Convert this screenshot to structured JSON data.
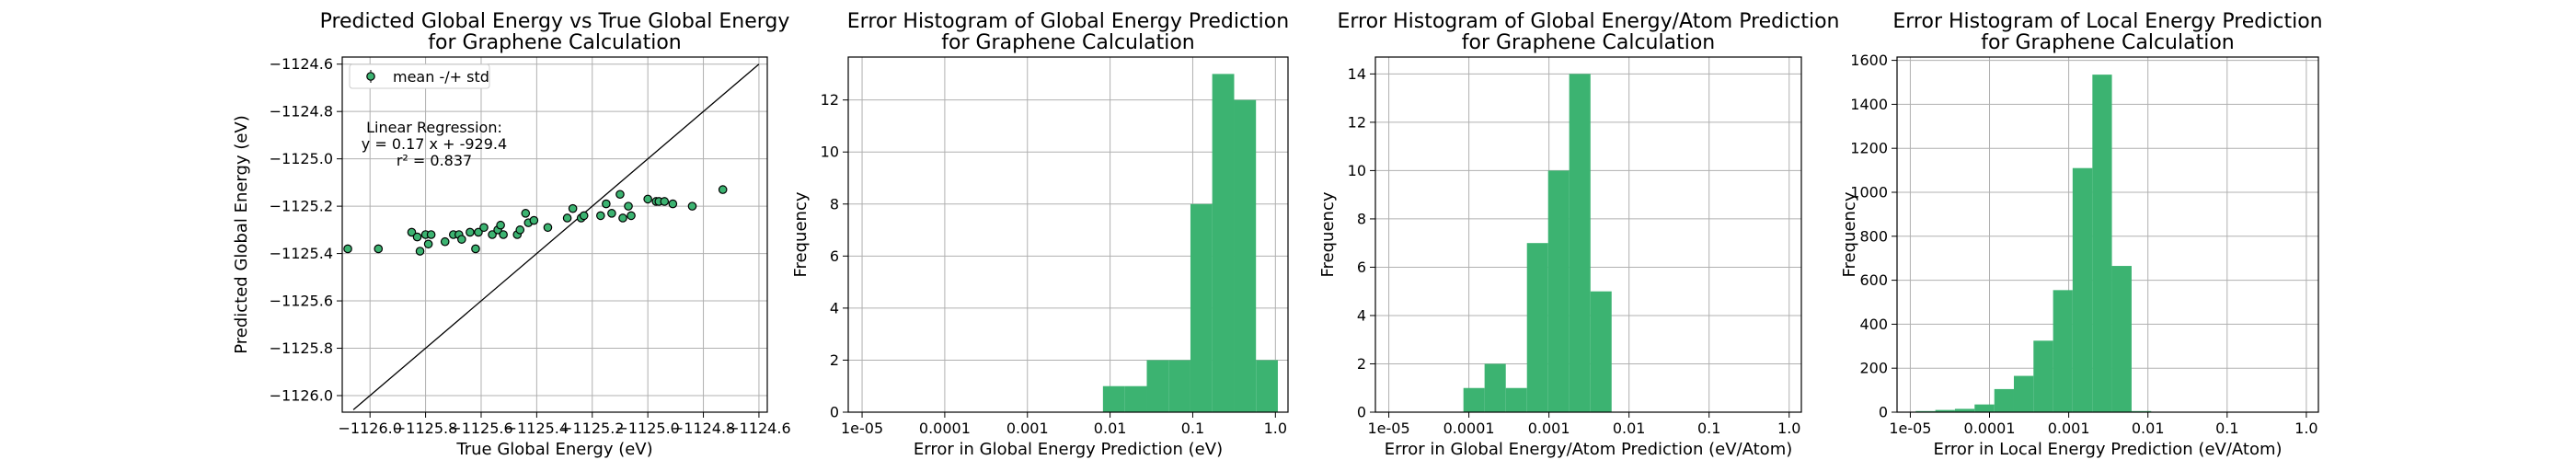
{
  "colors": {
    "bar": "#3cb371",
    "point": "#3cb371",
    "grid": "#b0b0b0",
    "line": "#000000"
  },
  "chart_data": [
    {
      "type": "scatter",
      "title": "Predicted Global Energy vs True Global Energy",
      "subtitle": "for Graphene Calculation",
      "xlabel": "True Global Energy (eV)",
      "ylabel": "Predicted Global Energy (eV)",
      "xlim": [
        -1126.1,
        -1124.57
      ],
      "ylim": [
        -1126.07,
        -1124.57
      ],
      "xticks": [
        -1126.0,
        -1125.8,
        -1125.6,
        -1125.4,
        -1125.2,
        -1125.0,
        -1124.8,
        -1124.6
      ],
      "xtick_labels": [
        "−1126.0",
        "−1125.8",
        "−1125.6",
        "−1125.4",
        "−1125.2",
        "−1125.0",
        "−1124.8",
        "−1124.6"
      ],
      "yticks": [
        -1126.0,
        -1125.8,
        -1125.6,
        -1125.4,
        -1125.2,
        -1125.0,
        -1124.8,
        -1124.6
      ],
      "ytick_labels": [
        "−1126.0",
        "−1125.8",
        "−1125.6",
        "−1125.4",
        "−1125.2",
        "−1125.0",
        "−1124.8",
        "−1124.6"
      ],
      "grid": true,
      "legend": {
        "label": "mean -/+ std",
        "position": "top-left"
      },
      "annotation": [
        "Linear Regression:",
        "y = 0.17 x + -929.4",
        "r² = 0.837"
      ],
      "identity_line": [
        [
          -1126.06,
          -1126.06
        ],
        [
          -1124.6,
          -1124.6
        ]
      ],
      "points": [
        [
          -1126.08,
          -1125.38
        ],
        [
          -1125.97,
          -1125.38
        ],
        [
          -1125.85,
          -1125.31
        ],
        [
          -1125.83,
          -1125.33
        ],
        [
          -1125.82,
          -1125.39
        ],
        [
          -1125.8,
          -1125.32
        ],
        [
          -1125.79,
          -1125.36
        ],
        [
          -1125.78,
          -1125.32
        ],
        [
          -1125.73,
          -1125.35
        ],
        [
          -1125.7,
          -1125.32
        ],
        [
          -1125.68,
          -1125.32
        ],
        [
          -1125.67,
          -1125.34
        ],
        [
          -1125.64,
          -1125.31
        ],
        [
          -1125.62,
          -1125.38
        ],
        [
          -1125.61,
          -1125.31
        ],
        [
          -1125.59,
          -1125.29
        ],
        [
          -1125.56,
          -1125.32
        ],
        [
          -1125.54,
          -1125.3
        ],
        [
          -1125.53,
          -1125.28
        ],
        [
          -1125.52,
          -1125.32
        ],
        [
          -1125.47,
          -1125.32
        ],
        [
          -1125.46,
          -1125.3
        ],
        [
          -1125.44,
          -1125.23
        ],
        [
          -1125.43,
          -1125.27
        ],
        [
          -1125.41,
          -1125.26
        ],
        [
          -1125.36,
          -1125.29
        ],
        [
          -1125.29,
          -1125.25
        ],
        [
          -1125.27,
          -1125.21
        ],
        [
          -1125.24,
          -1125.25
        ],
        [
          -1125.23,
          -1125.24
        ],
        [
          -1125.17,
          -1125.24
        ],
        [
          -1125.15,
          -1125.19
        ],
        [
          -1125.13,
          -1125.23
        ],
        [
          -1125.1,
          -1125.15
        ],
        [
          -1125.09,
          -1125.25
        ],
        [
          -1125.07,
          -1125.2
        ],
        [
          -1125.06,
          -1125.24
        ],
        [
          -1125.0,
          -1125.17
        ],
        [
          -1124.97,
          -1125.18
        ],
        [
          -1124.96,
          -1125.18
        ],
        [
          -1124.94,
          -1125.18
        ],
        [
          -1124.91,
          -1125.19
        ],
        [
          -1124.84,
          -1125.2
        ],
        [
          -1124.73,
          -1125.13
        ]
      ]
    },
    {
      "type": "bar",
      "title": "Error Histogram of Global Energy Prediction",
      "subtitle": "for Graphene Calculation",
      "xlabel": "Error in Global Energy Prediction (eV)",
      "ylabel": "Frequency",
      "xscale": "log",
      "xlim": [
        6.8e-06,
        1.42
      ],
      "ylim": [
        0,
        13.65
      ],
      "xticks": [
        1e-05,
        0.0001,
        0.001,
        0.01,
        0.1,
        1.0
      ],
      "xtick_labels": [
        "1e-05",
        "0.0001",
        "0.001",
        "0.01",
        "0.1",
        "1.0"
      ],
      "yticks": [
        0,
        2,
        4,
        6,
        8,
        10,
        12
      ],
      "ytick_labels": [
        "0",
        "2",
        "4",
        "6",
        "8",
        "10",
        "12"
      ],
      "grid": true,
      "bins": [
        [
          0.0082,
          0.0151,
          1
        ],
        [
          0.0151,
          0.0278,
          1
        ],
        [
          0.0278,
          0.051,
          2
        ],
        [
          0.051,
          0.0938,
          2
        ],
        [
          0.0938,
          0.172,
          8
        ],
        [
          0.172,
          0.317,
          13
        ],
        [
          0.317,
          0.582,
          12
        ],
        [
          0.582,
          1.07,
          2
        ]
      ]
    },
    {
      "type": "bar",
      "title": "Error Histogram of Global Energy/Atom Prediction",
      "subtitle": "for Graphene Calculation",
      "xlabel": "Error in Global Energy/Atom Prediction (eV/Atom)",
      "ylabel": "Frequency",
      "xscale": "log",
      "xlim": [
        6.8e-06,
        1.42
      ],
      "ylim": [
        0,
        14.7
      ],
      "xticks": [
        1e-05,
        0.0001,
        0.001,
        0.01,
        0.1,
        1.0
      ],
      "xtick_labels": [
        "1e-05",
        "0.0001",
        "0.001",
        "0.01",
        "0.1",
        "1.0"
      ],
      "yticks": [
        0,
        2,
        4,
        6,
        8,
        10,
        12,
        14
      ],
      "ytick_labels": [
        "0",
        "2",
        "4",
        "6",
        "8",
        "10",
        "12",
        "14"
      ],
      "grid": true,
      "bins": [
        [
          8.55e-05,
          0.000157,
          1
        ],
        [
          0.000157,
          0.000289,
          2
        ],
        [
          0.000289,
          0.000531,
          1
        ],
        [
          0.000531,
          0.000976,
          7
        ],
        [
          0.000976,
          0.00179,
          10
        ],
        [
          0.00179,
          0.0033,
          14
        ],
        [
          0.0033,
          0.00606,
          5
        ]
      ]
    },
    {
      "type": "bar",
      "title": "Error Histogram of Local Energy Prediction",
      "subtitle": "for Graphene Calculation",
      "xlabel": "Error in Local Energy Prediction (eV/Atom)",
      "ylabel": "Frequency",
      "xscale": "log",
      "xlim": [
        6.8e-06,
        1.42
      ],
      "ylim": [
        0,
        1615
      ],
      "xticks": [
        1e-05,
        0.0001,
        0.001,
        0.01,
        0.1,
        1.0
      ],
      "xtick_labels": [
        "1e-05",
        "0.0001",
        "0.001",
        "0.01",
        "0.1",
        "1.0"
      ],
      "yticks": [
        0,
        200,
        400,
        600,
        800,
        1000,
        1200,
        1400,
        1600
      ],
      "ytick_labels": [
        "0",
        "200",
        "400",
        "600",
        "800",
        "1000",
        "1200",
        "1400",
        "1600"
      ],
      "grid": true,
      "bins": [
        [
          1.17e-05,
          2.07e-05,
          5
        ],
        [
          2.07e-05,
          3.66e-05,
          10
        ],
        [
          3.66e-05,
          6.48e-05,
          15
        ],
        [
          6.48e-05,
          0.000115,
          35
        ],
        [
          0.000115,
          0.000203,
          105
        ],
        [
          0.000203,
          0.000359,
          165
        ],
        [
          0.000359,
          0.000635,
          325
        ],
        [
          0.000635,
          0.00112,
          555
        ],
        [
          0.00112,
          0.00199,
          1110
        ],
        [
          0.00199,
          0.00351,
          1535
        ],
        [
          0.00351,
          0.00622,
          665
        ],
        [
          0.00622,
          0.011,
          5
        ]
      ]
    }
  ]
}
